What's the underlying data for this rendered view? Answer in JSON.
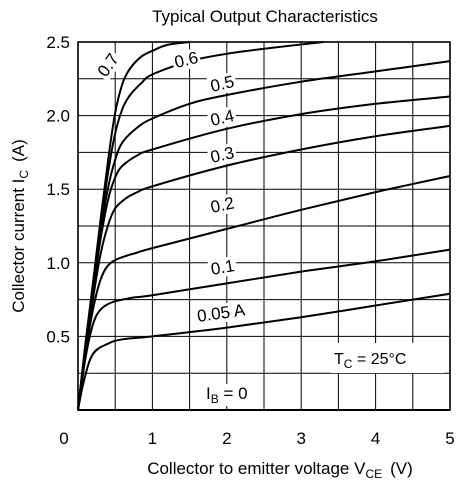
{
  "chart_data": {
    "type": "line",
    "title": "Typical Output Characteristics",
    "xlabel": "Collector to emitter voltage  V",
    "xlabel_sub": "CE",
    "xlabel_unit": "(V)",
    "ylabel": "Collector current  I",
    "ylabel_sub": "C",
    "ylabel_unit": "(A)",
    "xlim": [
      0,
      5
    ],
    "ylim": [
      0,
      2.5
    ],
    "x_ticks": [
      0,
      1,
      2,
      3,
      4,
      5
    ],
    "x_tick_labels": [
      "0",
      "1",
      "2",
      "3",
      "4",
      "5"
    ],
    "y_ticks": [
      0.5,
      1.0,
      1.5,
      2.0,
      2.5
    ],
    "y_tick_labels": [
      "0.5",
      "1.0",
      "1.5",
      "2.0",
      "2.5"
    ],
    "grid": true,
    "annotation": {
      "text": "T",
      "sub": "C",
      "rest": " = 25°C"
    },
    "series": [
      {
        "name": "IB = 0",
        "label": {
          "text": "I",
          "sub": "B",
          "rest": " = 0"
        },
        "points": [
          [
            0,
            0
          ],
          [
            5,
            0
          ]
        ]
      },
      {
        "name": "0.05 A",
        "label": {
          "text": "0.05 A"
        },
        "points": [
          [
            0,
            0
          ],
          [
            0.08,
            0.2
          ],
          [
            0.2,
            0.38
          ],
          [
            0.4,
            0.45
          ],
          [
            0.6,
            0.48
          ],
          [
            1,
            0.5
          ],
          [
            2,
            0.56
          ],
          [
            3,
            0.63
          ],
          [
            4,
            0.71
          ],
          [
            5,
            0.79
          ]
        ]
      },
      {
        "name": "0.1",
        "label": {
          "text": "0.1"
        },
        "points": [
          [
            0,
            0
          ],
          [
            0.1,
            0.35
          ],
          [
            0.2,
            0.58
          ],
          [
            0.3,
            0.68
          ],
          [
            0.45,
            0.73
          ],
          [
            0.7,
            0.76
          ],
          [
            1,
            0.78
          ],
          [
            2,
            0.86
          ],
          [
            3,
            0.94
          ],
          [
            4,
            1.01
          ],
          [
            5,
            1.09
          ]
        ]
      },
      {
        "name": "0.2",
        "label": {
          "text": "0.2"
        },
        "points": [
          [
            0,
            0
          ],
          [
            0.1,
            0.38
          ],
          [
            0.2,
            0.68
          ],
          [
            0.3,
            0.88
          ],
          [
            0.4,
            0.98
          ],
          [
            0.55,
            1.03
          ],
          [
            0.8,
            1.07
          ],
          [
            1,
            1.1
          ],
          [
            2,
            1.23
          ],
          [
            3,
            1.36
          ],
          [
            4,
            1.48
          ],
          [
            5,
            1.59
          ]
        ]
      },
      {
        "name": "0.3",
        "label": {
          "text": "0.3"
        },
        "points": [
          [
            0,
            0
          ],
          [
            0.1,
            0.4
          ],
          [
            0.2,
            0.75
          ],
          [
            0.3,
            1.05
          ],
          [
            0.4,
            1.25
          ],
          [
            0.5,
            1.37
          ],
          [
            0.65,
            1.44
          ],
          [
            0.8,
            1.48
          ],
          [
            1,
            1.52
          ],
          [
            2,
            1.66
          ],
          [
            3,
            1.77
          ],
          [
            4,
            1.86
          ],
          [
            5,
            1.93
          ]
        ]
      },
      {
        "name": "0.4",
        "label": {
          "text": "0.4"
        },
        "points": [
          [
            0,
            0
          ],
          [
            0.1,
            0.42
          ],
          [
            0.2,
            0.8
          ],
          [
            0.3,
            1.15
          ],
          [
            0.4,
            1.42
          ],
          [
            0.5,
            1.58
          ],
          [
            0.6,
            1.66
          ],
          [
            0.8,
            1.73
          ],
          [
            1,
            1.77
          ],
          [
            2,
            1.91
          ],
          [
            3,
            2.01
          ],
          [
            4,
            2.08
          ],
          [
            5,
            2.13
          ]
        ]
      },
      {
        "name": "0.5",
        "label": {
          "text": "0.5"
        },
        "points": [
          [
            0,
            0
          ],
          [
            0.1,
            0.43
          ],
          [
            0.2,
            0.82
          ],
          [
            0.3,
            1.2
          ],
          [
            0.4,
            1.5
          ],
          [
            0.5,
            1.7
          ],
          [
            0.6,
            1.82
          ],
          [
            0.8,
            1.92
          ],
          [
            1,
            1.98
          ],
          [
            1.5,
            2.08
          ],
          [
            2,
            2.14
          ],
          [
            3,
            2.23
          ],
          [
            4,
            2.3
          ],
          [
            5,
            2.37
          ]
        ]
      },
      {
        "name": "0.6",
        "label": {
          "text": "0.6"
        },
        "points": [
          [
            0,
            0
          ],
          [
            0.1,
            0.44
          ],
          [
            0.2,
            0.84
          ],
          [
            0.3,
            1.24
          ],
          [
            0.4,
            1.6
          ],
          [
            0.5,
            1.88
          ],
          [
            0.6,
            2.05
          ],
          [
            0.7,
            2.14
          ],
          [
            0.85,
            2.22
          ],
          [
            1,
            2.28
          ],
          [
            1.5,
            2.37
          ],
          [
            2,
            2.42
          ],
          [
            2.6,
            2.46
          ],
          [
            3.3,
            2.5
          ]
        ]
      },
      {
        "name": "0.7",
        "label": {
          "text": "0.7"
        },
        "points": [
          [
            0,
            0
          ],
          [
            0.1,
            0.45
          ],
          [
            0.2,
            0.86
          ],
          [
            0.3,
            1.28
          ],
          [
            0.4,
            1.68
          ],
          [
            0.5,
            2.02
          ],
          [
            0.6,
            2.22
          ],
          [
            0.7,
            2.32
          ],
          [
            0.85,
            2.4
          ],
          [
            1,
            2.44
          ],
          [
            1.2,
            2.48
          ],
          [
            1.5,
            2.5
          ]
        ]
      }
    ]
  }
}
